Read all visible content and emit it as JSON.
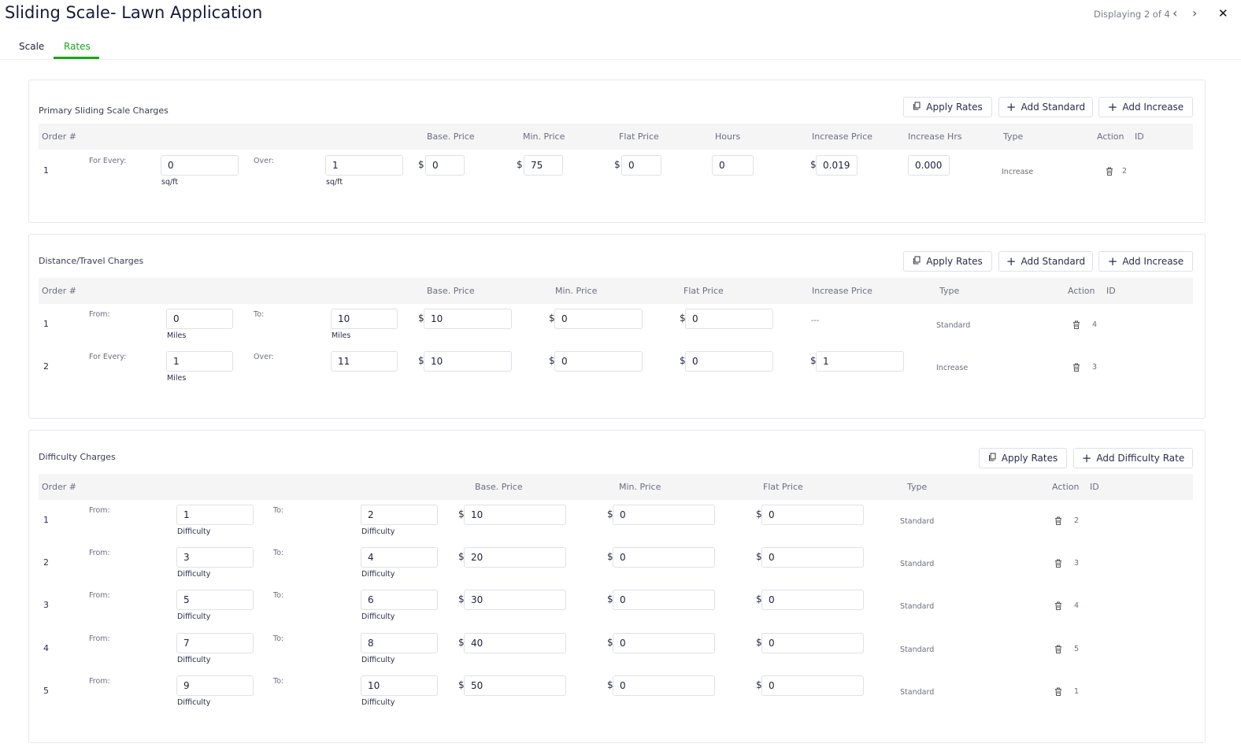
{
  "header": {
    "title": "Sliding Scale- Lawn Application",
    "pager": "Displaying 2 of 4"
  },
  "tabs": [
    {
      "label": "Scale"
    },
    {
      "label": "Rates",
      "active": true
    }
  ],
  "colors": {
    "accent": "#1aa51a",
    "text": "#1f2040"
  },
  "sections": [
    {
      "title": "Primary Sliding Scale Charges",
      "buttons": [
        "Apply Rates",
        "Add Standard",
        "Add Increase"
      ],
      "headers": [
        "Order #",
        "Base. Price",
        "Min. Price",
        "Flat Price",
        "Hours",
        "Increase Price",
        "Increase Hrs",
        "Type",
        "Action",
        "ID"
      ],
      "rows": [
        {
          "order": "1",
          "from_label": "For Every:",
          "from": "0",
          "from_unit": "sq/ft",
          "to_label": "Over:",
          "to": "1",
          "to_unit": "sq/ft",
          "base": "0",
          "min": "75",
          "flat": "0",
          "hours": "0",
          "increase_price": "0.019",
          "increase_hrs": "0.0000",
          "type": "Increase",
          "id": "2"
        }
      ]
    },
    {
      "title": "Distance/Travel Charges",
      "buttons": [
        "Apply Rates",
        "Add Standard",
        "Add Increase"
      ],
      "headers": [
        "Order #",
        "Base. Price",
        "Min. Price",
        "Flat Price",
        "Increase Price",
        "Type",
        "Action",
        "ID"
      ],
      "rows": [
        {
          "order": "1",
          "from_label": "From:",
          "from": "0",
          "from_unit": "Miles",
          "to_label": "To:",
          "to": "10",
          "to_unit": "Miles",
          "base": "10",
          "min": "0",
          "flat": "0",
          "increase_price": "---",
          "type": "Standard",
          "id": "4"
        },
        {
          "order": "2",
          "from_label": "For Every:",
          "from": "1",
          "from_unit": "Miles",
          "to_label": "Over:",
          "to": "11",
          "base": "10",
          "min": "0",
          "flat": "0",
          "increase_price": "1",
          "type": "Increase",
          "id": "3"
        }
      ]
    },
    {
      "title": "Difficulty Charges",
      "buttons": [
        "Apply Rates",
        "Add Difficulty Rate"
      ],
      "headers": [
        "Order #",
        "Base. Price",
        "Min. Price",
        "Flat Price",
        "Type",
        "Action",
        "ID"
      ],
      "rows": [
        {
          "order": "1",
          "from_label": "From:",
          "from": "1",
          "from_unit": "Difficulty",
          "to_label": "To:",
          "to": "2",
          "to_unit": "Difficulty",
          "base": "10",
          "min": "0",
          "flat": "0",
          "type": "Standard",
          "id": "2"
        },
        {
          "order": "2",
          "from_label": "From:",
          "from": "3",
          "from_unit": "Difficulty",
          "to_label": "To:",
          "to": "4",
          "to_unit": "Difficulty",
          "base": "20",
          "min": "0",
          "flat": "0",
          "type": "Standard",
          "id": "3"
        },
        {
          "order": "3",
          "from_label": "From:",
          "from": "5",
          "from_unit": "Difficulty",
          "to_label": "To:",
          "to": "6",
          "to_unit": "Difficulty",
          "base": "30",
          "min": "0",
          "flat": "0",
          "type": "Standard",
          "id": "4"
        },
        {
          "order": "4",
          "from_label": "From:",
          "from": "7",
          "from_unit": "Difficulty",
          "to_label": "To:",
          "to": "8",
          "to_unit": "Difficulty",
          "base": "40",
          "min": "0",
          "flat": "0",
          "type": "Standard",
          "id": "5"
        },
        {
          "order": "5",
          "from_label": "From:",
          "from": "9",
          "from_unit": "Difficulty",
          "to_label": "To:",
          "to": "10",
          "to_unit": "Difficulty",
          "base": "50",
          "min": "0",
          "flat": "0",
          "type": "Standard",
          "id": "1"
        }
      ]
    }
  ]
}
